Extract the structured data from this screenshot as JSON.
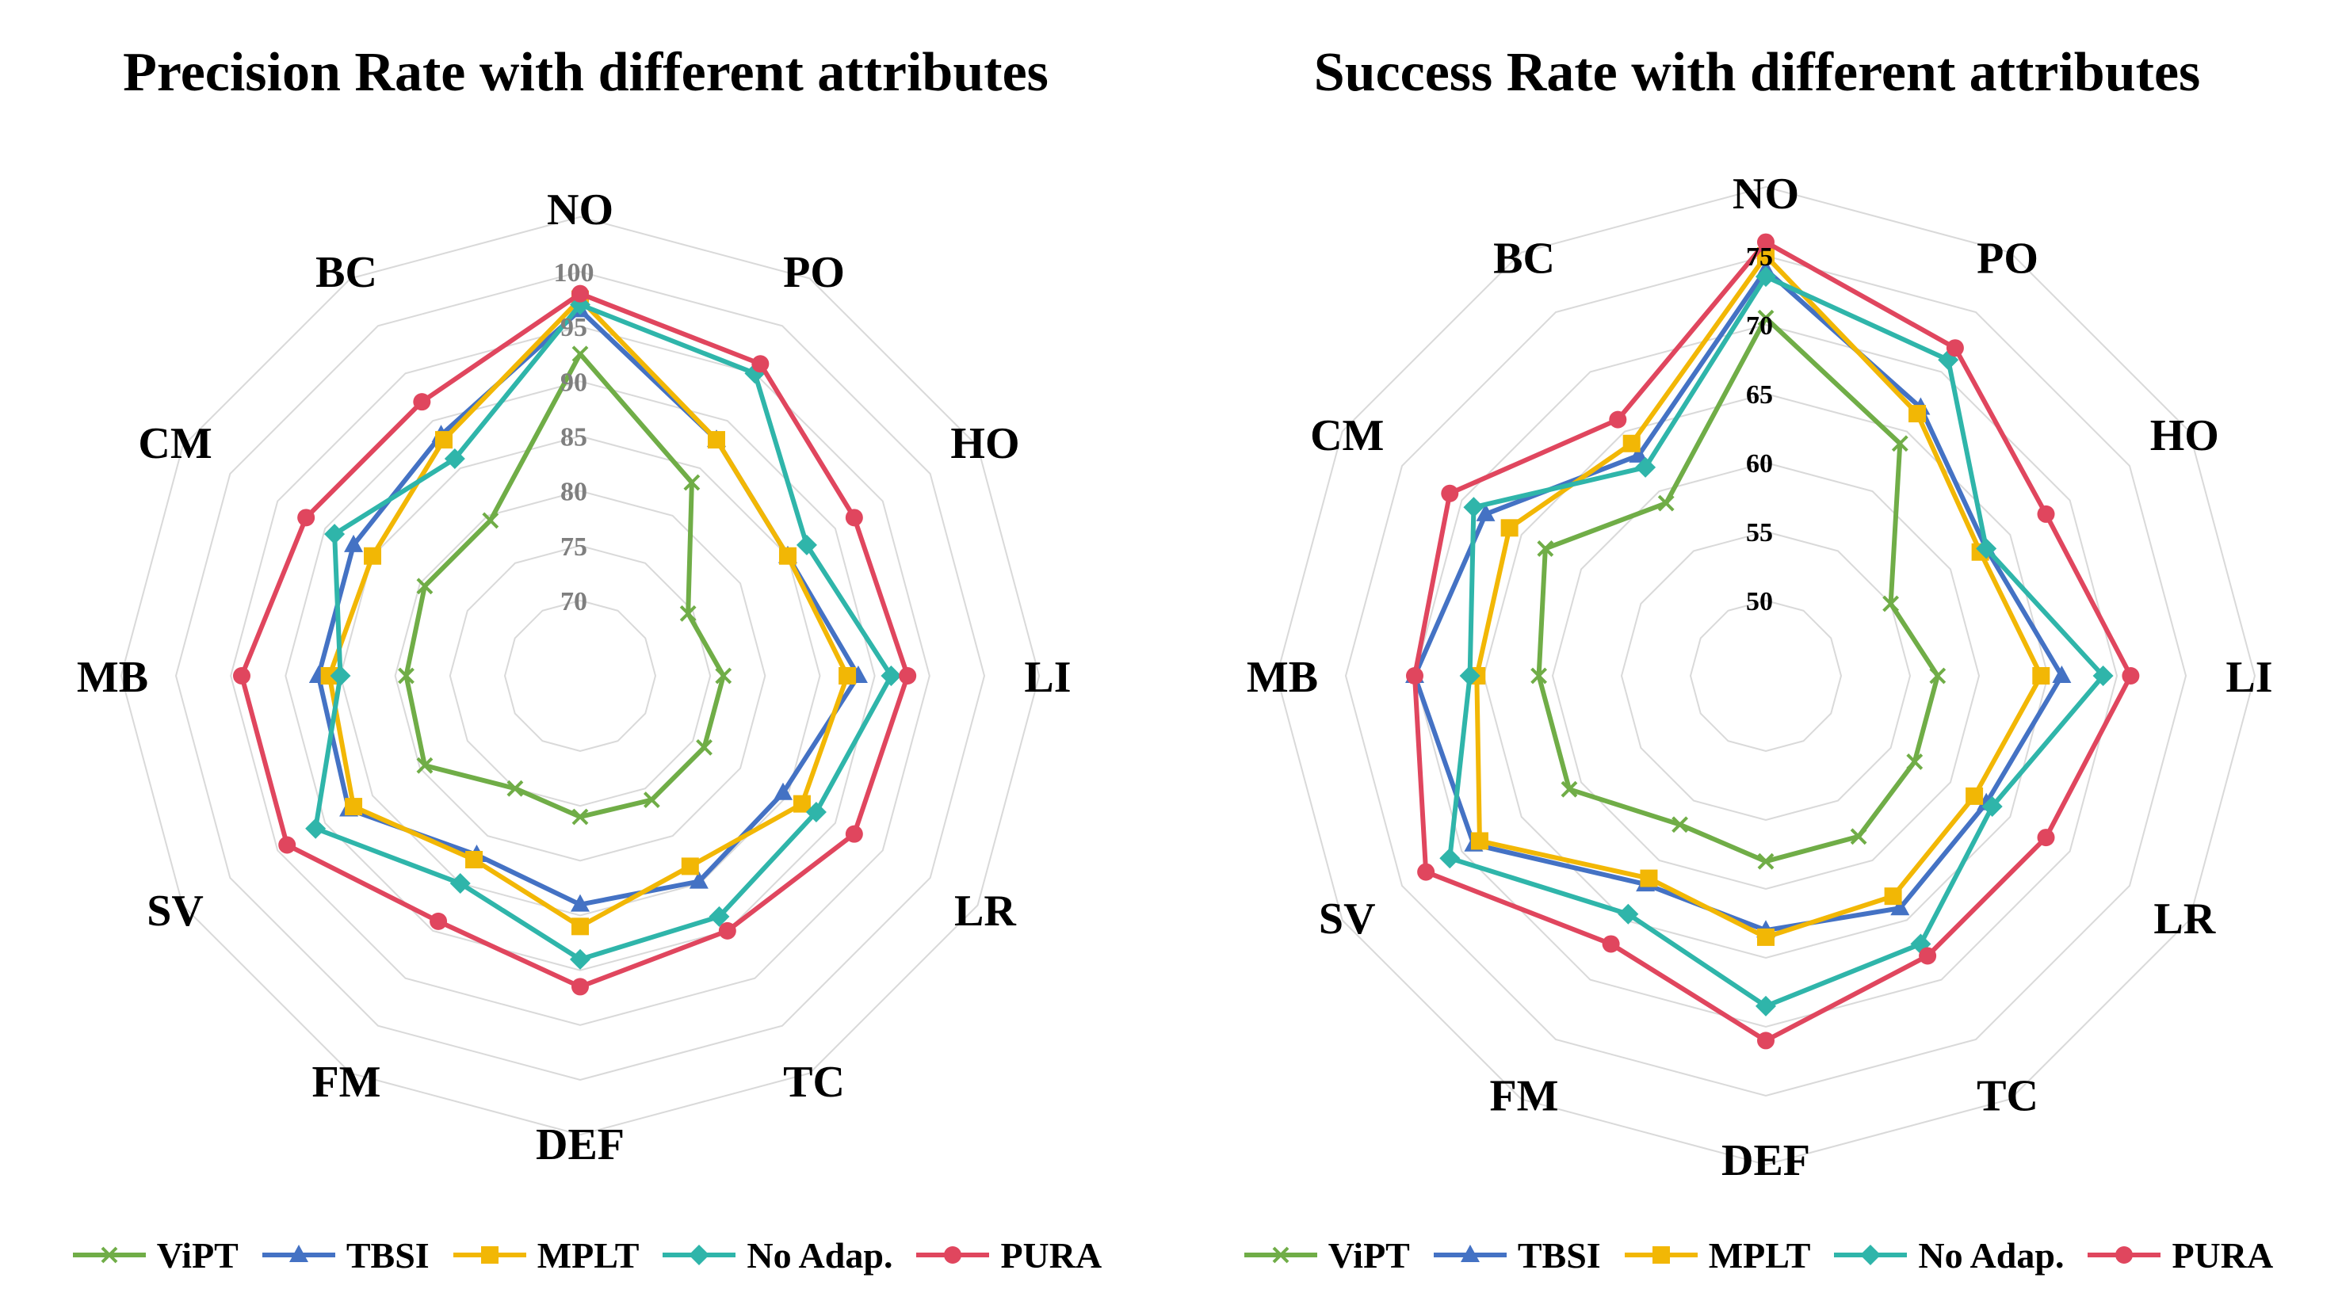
{
  "chart_data": [
    {
      "type": "radar",
      "title": "Precision Rate with different attributes",
      "categories": [
        "NO",
        "PO",
        "HO",
        "LI",
        "LR",
        "TC",
        "DEF",
        "FM",
        "SV",
        "MB",
        "CM",
        "BC"
      ],
      "rlim": [
        70,
        100
      ],
      "ticks": [
        "70",
        "75",
        "80",
        "85",
        "90",
        "95",
        "100"
      ],
      "tick_color": "#7f7f7f",
      "grid": true,
      "legend_position": "bottom",
      "series": [
        {
          "name": "ViPT",
          "color": "#70ad47",
          "marker": "x",
          "values": [
            92.5,
            83.5,
            74.5,
            76.2,
            76.2,
            76.2,
            76.0,
            75.0,
            79.5,
            79.0,
            79.5,
            79.5
          ]
        },
        {
          "name": "TBSI",
          "color": "#4472c4",
          "marker": "triangle",
          "values": [
            96.5,
            88.0,
            85.0,
            88.5,
            84.5,
            84.8,
            84.0,
            82.0,
            87.5,
            87.0,
            87.0,
            88.5
          ]
        },
        {
          "name": "MPLT",
          "color": "#f2b705",
          "marker": "square",
          "values": [
            97.5,
            88.0,
            85.0,
            87.5,
            86.5,
            83.2,
            86.0,
            82.5,
            87.0,
            86.0,
            85.0,
            88.0
          ]
        },
        {
          "name": "No Adap.",
          "color": "#2fb5aa",
          "marker": "diamond",
          "values": [
            97.0,
            95.0,
            87.0,
            91.5,
            88.0,
            88.5,
            89.0,
            85.0,
            91.0,
            85.0,
            89.0,
            86.0
          ]
        },
        {
          "name": "PURA",
          "color": "#e0465e",
          "marker": "circle",
          "values": [
            98.0,
            96.0,
            92.0,
            93.0,
            92.0,
            90.0,
            91.5,
            89.0,
            94.0,
            94.0,
            92.0,
            92.0
          ]
        }
      ]
    },
    {
      "type": "radar",
      "title": "Success Rate with different attributes",
      "categories": [
        "NO",
        "PO",
        "HO",
        "LI",
        "LR",
        "TC",
        "DEF",
        "FM",
        "SV",
        "MB",
        "CM",
        "BC"
      ],
      "rlim": [
        50,
        75
      ],
      "ticks": [
        "50",
        "55",
        "60",
        "65",
        "70",
        "75"
      ],
      "tick_color": "#000000",
      "grid": true,
      "legend_position": "bottom",
      "series": [
        {
          "name": "ViPT",
          "color": "#70ad47",
          "marker": "x",
          "values": [
            70.5,
            64.0,
            55.0,
            57.0,
            57.0,
            58.0,
            58.0,
            57.0,
            61.0,
            61.0,
            63.0,
            59.0
          ]
        },
        {
          "name": "TBSI",
          "color": "#4472c4",
          "marker": "triangle",
          "values": [
            74.0,
            67.0,
            63.0,
            66.0,
            63.0,
            64.0,
            63.0,
            62.0,
            69.0,
            70.0,
            68.0,
            63.0
          ]
        },
        {
          "name": "MPLT",
          "color": "#f2b705",
          "marker": "square",
          "values": [
            75.0,
            66.5,
            62.5,
            64.5,
            62.0,
            63.0,
            63.5,
            61.5,
            68.5,
            65.5,
            66.0,
            64.0
          ]
        },
        {
          "name": "No Adap.",
          "color": "#2fb5aa",
          "marker": "diamond",
          "values": [
            73.5,
            71.0,
            63.0,
            69.0,
            63.5,
            67.0,
            68.5,
            64.5,
            71.0,
            66.0,
            69.0,
            62.0
          ]
        },
        {
          "name": "PURA",
          "color": "#e0465e",
          "marker": "circle",
          "values": [
            76.0,
            72.0,
            68.0,
            71.0,
            68.0,
            68.0,
            71.0,
            67.0,
            73.0,
            70.0,
            71.0,
            66.0
          ]
        }
      ]
    }
  ]
}
